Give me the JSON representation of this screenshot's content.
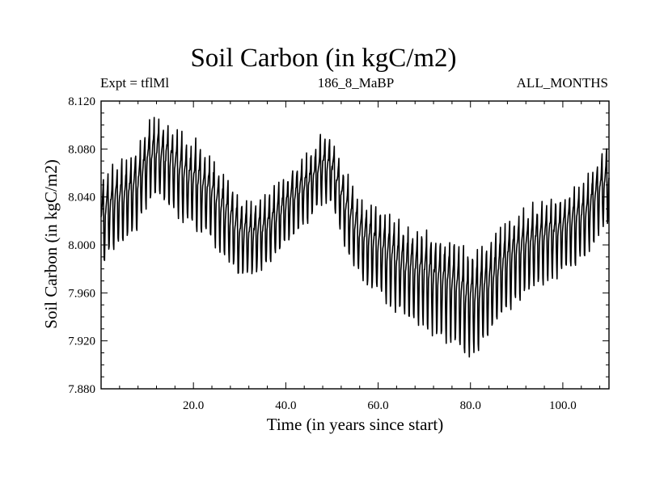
{
  "chart_data": {
    "type": "line",
    "title": "Soil Carbon (in kgC/m2)",
    "subtitle_left": "Expt = tflMl",
    "subtitle_center": "186_8_MaBP",
    "subtitle_right": "ALL_MONTHS",
    "xlabel": "Time (in years since start)",
    "ylabel": "Soil Carbon (in kgC/m2)",
    "xlim": [
      0,
      110
    ],
    "ylim": [
      7.88,
      8.12
    ],
    "x_ticks": [
      20,
      40,
      60,
      80,
      100
    ],
    "x_tick_labels": [
      "20.0",
      "40.0",
      "60.0",
      "80.0",
      "100.0"
    ],
    "y_ticks": [
      7.88,
      7.92,
      7.96,
      8.0,
      8.04,
      8.08,
      8.12
    ],
    "y_tick_labels": [
      "7.880",
      "7.920",
      "7.960",
      "8.000",
      "8.040",
      "8.080",
      "8.120"
    ],
    "grid": false,
    "series": [
      {
        "name": "Soil Carbon",
        "sampling": "monthly (values approximated from figure)",
        "annual_mean_trend": {
          "x": [
            0,
            2,
            5,
            8,
            10,
            12,
            15,
            18,
            21,
            24,
            27,
            30,
            33,
            36,
            39,
            42,
            45,
            48,
            50,
            53,
            56,
            60,
            63,
            66,
            70,
            73,
            76,
            79,
            81,
            84,
            87,
            90,
            95,
            100,
            105,
            108,
            110
          ],
          "y": [
            8.018,
            8.028,
            8.036,
            8.046,
            8.068,
            8.072,
            8.066,
            8.054,
            8.048,
            8.038,
            8.022,
            8.006,
            8.004,
            8.012,
            8.024,
            8.038,
            8.048,
            8.064,
            8.06,
            8.028,
            8.005,
            7.994,
            7.985,
            7.976,
            7.972,
            7.966,
            7.962,
            7.952,
            7.952,
            7.962,
            7.978,
            7.99,
            8.0,
            8.01,
            8.022,
            8.042,
            8.05
          ]
        },
        "seasonal_amplitude": {
          "x": [
            0,
            5,
            10,
            15,
            20,
            25,
            30,
            35,
            40,
            45,
            50,
            55,
            60,
            65,
            70,
            75,
            80,
            85,
            90,
            95,
            100,
            105,
            110
          ],
          "y": [
            0.034,
            0.034,
            0.03,
            0.032,
            0.034,
            0.032,
            0.03,
            0.028,
            0.026,
            0.026,
            0.026,
            0.03,
            0.034,
            0.036,
            0.038,
            0.04,
            0.04,
            0.038,
            0.034,
            0.032,
            0.03,
            0.03,
            0.03
          ]
        },
        "color": "#000000"
      }
    ]
  }
}
